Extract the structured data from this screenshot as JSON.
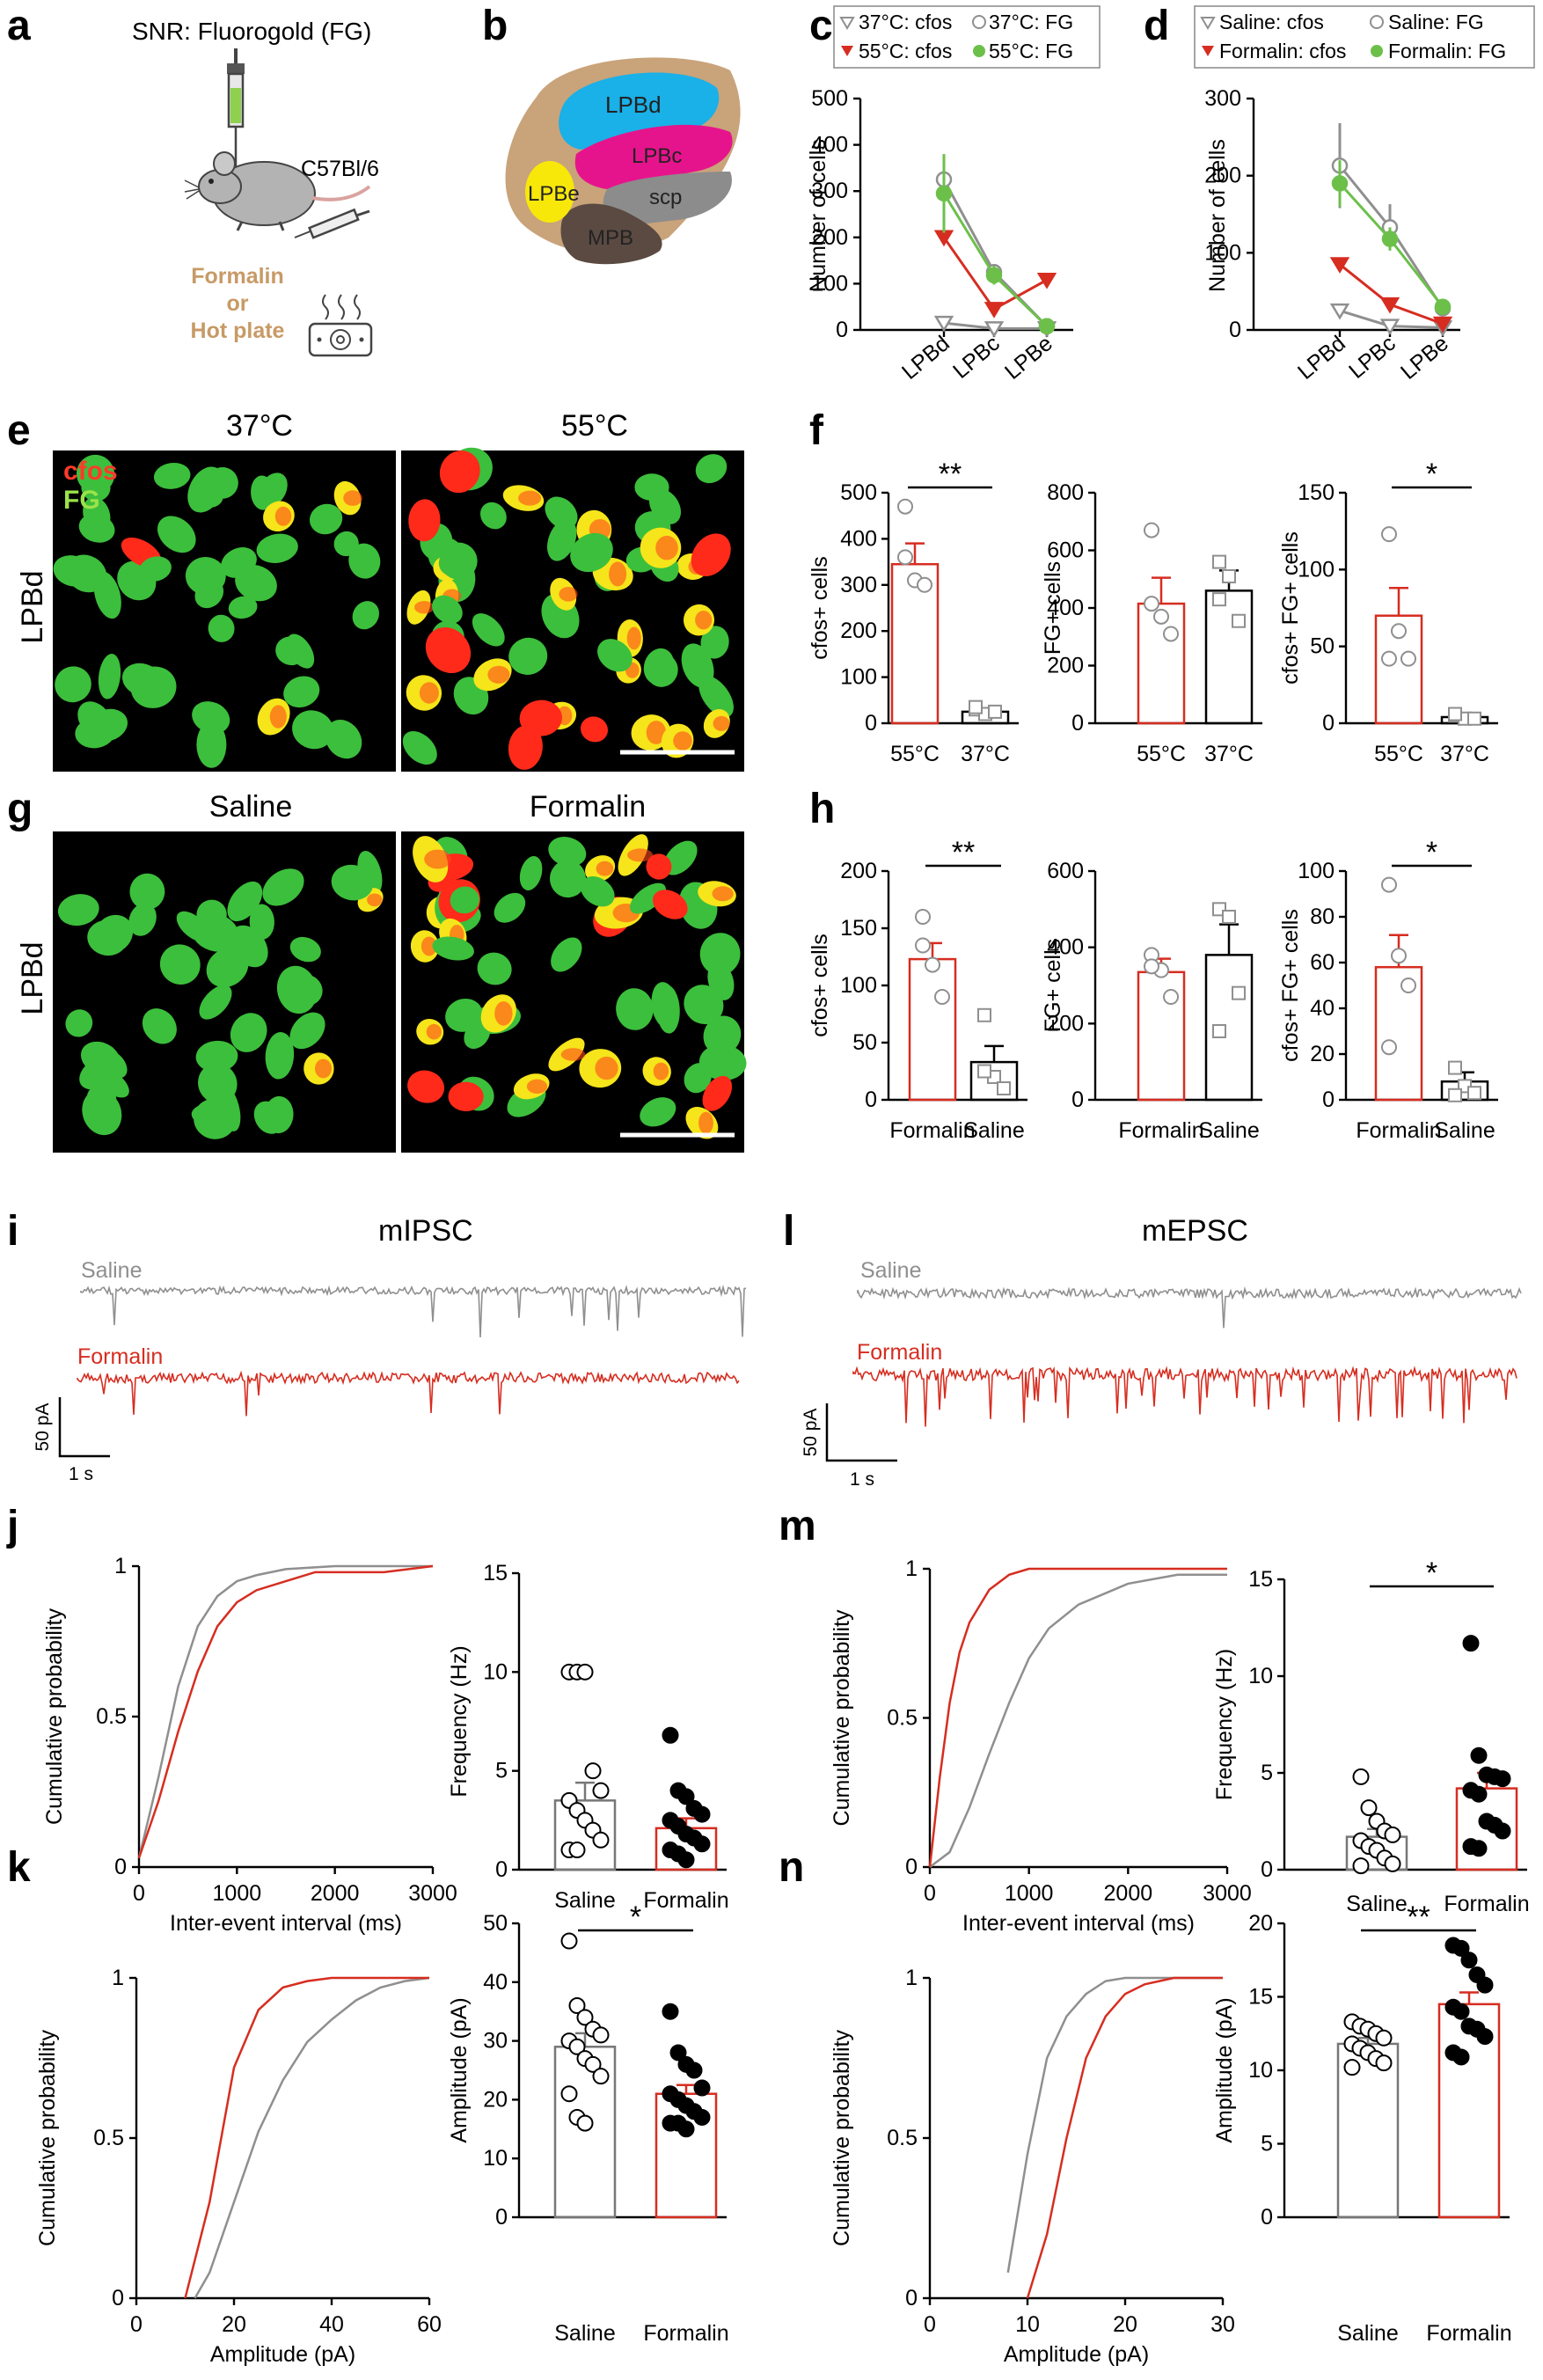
{
  "colors": {
    "red": "#d62d20",
    "gray": "#8f8f8f",
    "green": "#6cc04a",
    "blue": "#1ab0e8",
    "magenta": "#e6148c",
    "yellow": "#f7e80a",
    "brown": "#c9a37a",
    "darkgray": "#8c8c8c",
    "darkbrown": "#5a4a42",
    "fg": "#3cbf3c",
    "orange": "#c79a66"
  },
  "panel_a": {
    "label": "a",
    "title": "SNR: Fluorogold (FG)",
    "strain": "C57Bl/6",
    "stim_line1": "Formalin",
    "stim_line2": "or",
    "stim_line3": "Hot plate",
    "icons": [
      "syringe-icon",
      "mouse-icon",
      "hot-plate-icon"
    ]
  },
  "panel_b": {
    "label": "b",
    "regions": {
      "lpbd": "LPBd",
      "lpbc": "LPBc",
      "lpbe": "LPBe",
      "scp": "scp",
      "mpb": "MPB"
    }
  },
  "panel_e": {
    "label": "e",
    "left_title": "37°C",
    "right_title": "55°C",
    "ylabel": "LPBd",
    "tag_cfos": "cfos",
    "tag_fg": "FG"
  },
  "panel_g": {
    "label": "g",
    "left_title": "Saline",
    "right_title": "Formalin",
    "ylabel": "LPBd"
  },
  "panel_i": {
    "label": "i",
    "title": "mIPSC",
    "saline": "Saline",
    "formalin": "Formalin",
    "scale_y": "50 pA",
    "scale_x": "1 s"
  },
  "panel_l": {
    "label": "l",
    "title": "mEPSC",
    "saline": "Saline",
    "formalin": "Formalin",
    "scale_y": "50 pA",
    "scale_x": "1 s"
  },
  "chart_data": [
    {
      "id": "c",
      "type": "line",
      "ylabel": "Number of cells",
      "categories": [
        "LPBd",
        "LPBc",
        "LPBe"
      ],
      "ylim": [
        0,
        500
      ],
      "yticks": [
        "0",
        "100",
        "200",
        "300",
        "400",
        "500"
      ],
      "legend": [
        "37°C: cfos",
        "37°C: FG",
        "55°C: cfos",
        "55°C: FG"
      ],
      "series": [
        {
          "name": "37°C: cfos",
          "values": [
            15,
            3,
            3
          ]
        },
        {
          "name": "37°C: FG",
          "values": [
            325,
            125,
            8
          ],
          "err": [
            30,
            10,
            2
          ]
        },
        {
          "name": "55°C: cfos",
          "values": [
            200,
            45,
            108
          ]
        },
        {
          "name": "55°C: FG",
          "values": [
            295,
            118,
            8
          ],
          "err": [
            85,
            20,
            3
          ]
        }
      ]
    },
    {
      "id": "d",
      "type": "line",
      "ylabel": "Number of cells",
      "categories": [
        "LPBd",
        "LPBc",
        "LPBe"
      ],
      "ylim": [
        0,
        300
      ],
      "yticks": [
        "0",
        "100",
        "200",
        "300"
      ],
      "legend": [
        "Saline: cfos",
        "Saline: FG",
        "Formalin: cfos",
        "Formalin: FG"
      ],
      "series": [
        {
          "name": "Saline: cfos",
          "values": [
            25,
            5,
            3
          ]
        },
        {
          "name": "Saline: FG",
          "values": [
            213,
            133,
            28
          ],
          "err": [
            55,
            30,
            5
          ]
        },
        {
          "name": "Formalin: cfos",
          "values": [
            85,
            33,
            8
          ]
        },
        {
          "name": "Formalin: FG",
          "values": [
            190,
            118,
            30
          ],
          "err": [
            30,
            15,
            5
          ]
        }
      ]
    },
    {
      "id": "f1",
      "type": "bar",
      "ylabel": "cfos+ cells",
      "categories": [
        "55°C",
        "37°C"
      ],
      "ylim": [
        0,
        500
      ],
      "yticks": [
        "0",
        "100",
        "200",
        "300",
        "400",
        "500"
      ],
      "means": [
        345,
        25
      ],
      "sem": [
        45,
        8
      ],
      "points": [
        [
          470,
          310,
          300,
          360
        ],
        [
          30,
          20,
          25,
          35
        ]
      ],
      "sig": "**"
    },
    {
      "id": "f2",
      "type": "bar",
      "ylabel": "FG+ cells",
      "categories": [
        "55°C",
        "37°C"
      ],
      "ylim": [
        0,
        800
      ],
      "yticks": [
        "0",
        "200",
        "400",
        "600",
        "800"
      ],
      "means": [
        415,
        460
      ],
      "sem": [
        90,
        70
      ],
      "points": [
        [
          670,
          370,
          310,
          415
        ],
        [
          560,
          510,
          355,
          430
        ]
      ],
      "sig": ""
    },
    {
      "id": "f3",
      "type": "bar",
      "ylabel": "cfos+ FG+ cells",
      "categories": [
        "55°C",
        "37°C"
      ],
      "ylim": [
        0,
        150
      ],
      "yticks": [
        "0",
        "50",
        "100",
        "150"
      ],
      "means": [
        70,
        4
      ],
      "sem": [
        18,
        2
      ],
      "points": [
        [
          123,
          60,
          42,
          42
        ],
        [
          5,
          3,
          3,
          6
        ]
      ],
      "sig": "*"
    },
    {
      "id": "h1",
      "type": "bar",
      "ylabel": "cfos+ cells",
      "categories": [
        "Formalin",
        "Saline"
      ],
      "ylim": [
        0,
        200
      ],
      "yticks": [
        "0",
        "50",
        "100",
        "150",
        "200"
      ],
      "means": [
        123,
        33
      ],
      "sem": [
        14,
        14
      ],
      "points": [
        [
          160,
          118,
          90,
          135
        ],
        [
          74,
          20,
          10,
          25
        ]
      ],
      "sig": "**"
    },
    {
      "id": "h2",
      "type": "bar",
      "ylabel": "FG+ cells",
      "categories": [
        "Formalin",
        "Saline"
      ],
      "ylim": [
        0,
        600
      ],
      "yticks": [
        "0",
        "200",
        "400",
        "600"
      ],
      "means": [
        335,
        380
      ],
      "sem": [
        35,
        80
      ],
      "points": [
        [
          380,
          340,
          270,
          350
        ],
        [
          500,
          480,
          280,
          180
        ]
      ],
      "sig": ""
    },
    {
      "id": "h3",
      "type": "bar",
      "ylabel": "cfos+ FG+ cells",
      "categories": [
        "Formalin",
        "Saline"
      ],
      "ylim": [
        0,
        100
      ],
      "yticks": [
        "0",
        "20",
        "40",
        "60",
        "80",
        "100"
      ],
      "means": [
        58,
        8
      ],
      "sem": [
        14,
        4
      ],
      "points": [
        [
          94,
          63,
          50,
          23
        ],
        [
          14,
          6,
          3,
          2
        ]
      ],
      "sig": "*"
    },
    {
      "id": "j1",
      "type": "line",
      "xlabel": "Inter-event interval (ms)",
      "ylabel": "Cumulative probability",
      "xlim": [
        0,
        3000
      ],
      "xticks": [
        "0",
        "1000",
        "2000",
        "3000"
      ],
      "ylim": [
        0,
        1
      ],
      "yticks": [
        "0",
        "0.5",
        "1"
      ],
      "series": [
        {
          "name": "Saline",
          "x": [
            0,
            200,
            400,
            600,
            800,
            1000,
            1200,
            1500,
            2000,
            3000
          ],
          "y": [
            0.03,
            0.3,
            0.6,
            0.8,
            0.9,
            0.95,
            0.97,
            0.99,
            1,
            1
          ]
        },
        {
          "name": "Formalin",
          "x": [
            0,
            200,
            400,
            600,
            800,
            1000,
            1200,
            1500,
            1800,
            2500,
            3000
          ],
          "y": [
            0.03,
            0.22,
            0.45,
            0.65,
            0.8,
            0.88,
            0.92,
            0.95,
            0.98,
            0.98,
            1
          ]
        }
      ]
    },
    {
      "id": "j2",
      "type": "bar",
      "ylabel": "Frequency (Hz)",
      "categories": [
        "Saline",
        "Formalin"
      ],
      "ylim": [
        0,
        15
      ],
      "yticks": [
        "0",
        "5",
        "10",
        "15"
      ],
      "means": [
        3.5,
        2.1
      ],
      "sem": [
        0.9,
        0.5
      ],
      "points": [
        [
          10,
          10,
          10,
          5,
          4,
          3.5,
          3,
          2.5,
          2,
          1.5,
          1,
          1
        ],
        [
          6.8,
          4,
          3.7,
          3.1,
          2.8,
          2.5,
          2.2,
          1.8,
          1.6,
          1.3,
          1,
          0.8,
          0.5
        ]
      ],
      "fill": [
        "white",
        "black"
      ],
      "sig": ""
    },
    {
      "id": "k1",
      "type": "line",
      "xlabel": "Amplitude (pA)",
      "ylabel": "Cumulative probability",
      "xlim": [
        0,
        60
      ],
      "xticks": [
        "0",
        "20",
        "40",
        "60"
      ],
      "ylim": [
        0,
        1
      ],
      "yticks": [
        "0",
        "0.5",
        "1"
      ],
      "series": [
        {
          "name": "Saline",
          "x": [
            12,
            15,
            20,
            25,
            30,
            35,
            40,
            45,
            50,
            55,
            60
          ],
          "y": [
            0,
            0.08,
            0.3,
            0.52,
            0.68,
            0.8,
            0.87,
            0.93,
            0.97,
            0.99,
            1
          ]
        },
        {
          "name": "Formalin",
          "x": [
            10,
            15,
            20,
            25,
            30,
            35,
            40,
            50,
            60
          ],
          "y": [
            0,
            0.3,
            0.72,
            0.9,
            0.97,
            0.99,
            1,
            1,
            1
          ]
        }
      ]
    },
    {
      "id": "k2",
      "type": "bar",
      "ylabel": "Amplitude (pA)",
      "categories": [
        "Saline",
        "Formalin"
      ],
      "ylim": [
        0,
        50
      ],
      "yticks": [
        "0",
        "10",
        "20",
        "30",
        "40",
        "50"
      ],
      "means": [
        29,
        21
      ],
      "sem": [
        2.3,
        1.5
      ],
      "points": [
        [
          47,
          36,
          34,
          32,
          31,
          30,
          29,
          27,
          26,
          24,
          21,
          17,
          16
        ],
        [
          35,
          28,
          26,
          25,
          22,
          21,
          20,
          19,
          18,
          17,
          16,
          16,
          15
        ]
      ],
      "fill": [
        "white",
        "black"
      ],
      "sig": "*"
    },
    {
      "id": "m1",
      "type": "line",
      "xlabel": "Inter-event interval (ms)",
      "ylabel": "Cumulative probability",
      "xlim": [
        0,
        3000
      ],
      "xticks": [
        "0",
        "1000",
        "2000",
        "3000"
      ],
      "ylim": [
        0,
        1
      ],
      "yticks": [
        "0",
        "0.5",
        "1"
      ],
      "series": [
        {
          "name": "Saline",
          "x": [
            0,
            200,
            400,
            600,
            800,
            1000,
            1200,
            1500,
            2000,
            2500,
            3000
          ],
          "y": [
            0,
            0.05,
            0.2,
            0.38,
            0.55,
            0.7,
            0.8,
            0.88,
            0.95,
            0.98,
            0.98
          ]
        },
        {
          "name": "Formalin",
          "x": [
            0,
            100,
            200,
            300,
            400,
            600,
            800,
            1000,
            1500,
            3000
          ],
          "y": [
            0,
            0.3,
            0.55,
            0.72,
            0.82,
            0.93,
            0.98,
            1,
            1,
            1
          ]
        }
      ]
    },
    {
      "id": "m2",
      "type": "bar",
      "ylabel": "Frequency (Hz)",
      "categories": [
        "Saline",
        "Formalin"
      ],
      "ylim": [
        0,
        15
      ],
      "yticks": [
        "0",
        "5",
        "10",
        "15"
      ],
      "means": [
        1.7,
        4.2
      ],
      "sem": [
        0.4,
        0.8
      ],
      "points": [
        [
          4.8,
          3.2,
          2.5,
          2,
          1.8,
          1.5,
          1.2,
          1,
          0.6,
          0.3,
          0.2
        ],
        [
          11.7,
          5.9,
          4.9,
          4.8,
          4.7,
          4.1,
          3.9,
          2.5,
          2.3,
          2,
          1.2,
          1.1
        ]
      ],
      "fill": [
        "white",
        "black"
      ],
      "sig": "*"
    },
    {
      "id": "n1",
      "type": "line",
      "xlabel": "Amplitude (pA)",
      "ylabel": "Cumulative probability",
      "xlim": [
        0,
        30
      ],
      "xticks": [
        "0",
        "10",
        "20",
        "30"
      ],
      "ylim": [
        0,
        1
      ],
      "yticks": [
        "0",
        "0.5",
        "1"
      ],
      "series": [
        {
          "name": "Saline",
          "x": [
            8,
            10,
            12,
            14,
            16,
            18,
            20,
            25,
            30
          ],
          "y": [
            0.08,
            0.45,
            0.75,
            0.88,
            0.95,
            0.99,
            1,
            1,
            1
          ]
        },
        {
          "name": "Formalin",
          "x": [
            10,
            12,
            14,
            16,
            18,
            20,
            22,
            25,
            28,
            30
          ],
          "y": [
            0,
            0.2,
            0.5,
            0.75,
            0.88,
            0.95,
            0.98,
            1,
            1,
            1
          ]
        }
      ]
    },
    {
      "id": "n2",
      "type": "bar",
      "ylabel": "Amplitude (pA)",
      "categories": [
        "Saline",
        "Formalin"
      ],
      "ylim": [
        0,
        20
      ],
      "yticks": [
        "0",
        "5",
        "10",
        "15",
        "20"
      ],
      "means": [
        11.8,
        14.5
      ],
      "sem": [
        0.4,
        0.8
      ],
      "points": [
        [
          13.3,
          13,
          12.8,
          12.5,
          12.2,
          11.8,
          11.5,
          11.2,
          10.8,
          10.5,
          10.2
        ],
        [
          18.5,
          18.3,
          17.5,
          16.5,
          15.8,
          14.3,
          14,
          13,
          12.8,
          12.3,
          11.2,
          10.9
        ]
      ],
      "fill": [
        "white",
        "black"
      ],
      "sig": "**"
    }
  ],
  "panel_labels": {
    "c": "c",
    "d": "d",
    "f": "f",
    "h": "h",
    "j": "j",
    "k": "k",
    "m": "m",
    "n": "n"
  }
}
